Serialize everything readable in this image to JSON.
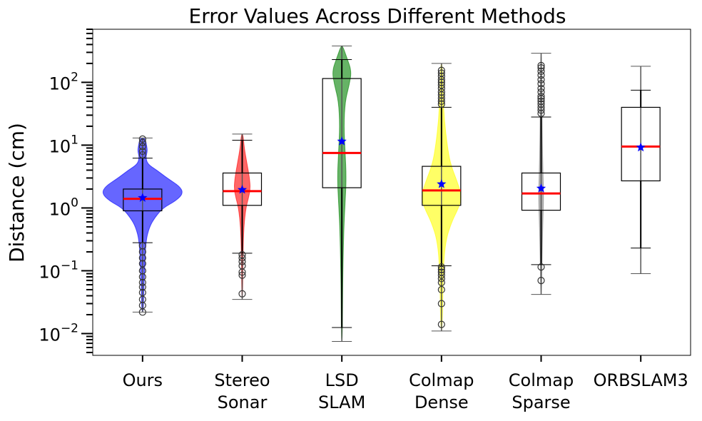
{
  "chart_data": {
    "type": "box+violin",
    "title": "Error Values Across Different Methods",
    "xlabel": "",
    "ylabel": "Distance (cm)",
    "yscale": "log",
    "ylim": [
      0.0045,
      700
    ],
    "y_ticks": [
      {
        "base": "10",
        "exp": "2",
        "value": 100
      },
      {
        "base": "10",
        "exp": "1",
        "value": 10
      },
      {
        "base": "10",
        "exp": "0",
        "value": 1
      },
      {
        "base": "10",
        "exp": "−1",
        "value": 0.1
      },
      {
        "base": "10",
        "exp": "−2",
        "value": 0.01
      }
    ],
    "mean_marker": "star",
    "median_color": "#ff0000",
    "mean_color": "#0000ff",
    "series": [
      {
        "name": "Ours",
        "label_lines": [
          "Ours"
        ],
        "violin_color": "#0000ff",
        "violin_max": 13,
        "violin_min": 0.022,
        "violin_profile": [
          [
            13,
            0.06
          ],
          [
            10,
            0.1
          ],
          [
            8,
            0.12
          ],
          [
            6.5,
            0.08
          ],
          [
            5,
            0.12
          ],
          [
            4,
            0.35
          ],
          [
            3,
            0.6
          ],
          [
            2.2,
            0.92
          ],
          [
            1.7,
            1.0
          ],
          [
            1.3,
            0.82
          ],
          [
            1,
            0.5
          ],
          [
            0.7,
            0.3
          ],
          [
            0.5,
            0.17
          ],
          [
            0.3,
            0.08
          ],
          [
            0.1,
            0.05
          ],
          [
            0.05,
            0.03
          ],
          [
            0.022,
            0.02
          ]
        ],
        "q1": 0.9,
        "median": 1.4,
        "q3": 2.0,
        "mean": 1.45,
        "whisker_low": 0.28,
        "whisker_high": 6.2,
        "outliers": [
          0.022,
          0.028,
          0.035,
          0.045,
          0.055,
          0.065,
          0.08,
          0.1,
          0.13,
          0.16,
          0.2,
          0.25,
          7,
          8,
          9.5,
          11,
          12.5
        ]
      },
      {
        "name": "Stereo Sonar",
        "label_lines": [
          "Stereo",
          "Sonar"
        ],
        "violin_color": "#ff0000",
        "violin_max": 15,
        "violin_min": 0.035,
        "violin_profile": [
          [
            15,
            0.02
          ],
          [
            9,
            0.05
          ],
          [
            5,
            0.12
          ],
          [
            3,
            0.18
          ],
          [
            2,
            0.2
          ],
          [
            1.4,
            0.15
          ],
          [
            1,
            0.09
          ],
          [
            0.5,
            0.04
          ],
          [
            0.2,
            0.02
          ],
          [
            0.035,
            0.01
          ]
        ],
        "q1": 1.1,
        "median": 1.85,
        "q3": 3.6,
        "mean": 1.95,
        "whisker_low": 0.19,
        "whisker_high": 12,
        "outliers": [
          0.043,
          0.085,
          0.095,
          0.12,
          0.14,
          0.16,
          0.18
        ]
      },
      {
        "name": "LSD SLAM",
        "label_lines": [
          "LSD",
          "SLAM"
        ],
        "violin_color": "#008000",
        "violin_max": 380,
        "violin_min": 0.0075,
        "violin_profile": [
          [
            380,
            0.02
          ],
          [
            250,
            0.12
          ],
          [
            150,
            0.24
          ],
          [
            90,
            0.18
          ],
          [
            50,
            0.08
          ],
          [
            20,
            0.05
          ],
          [
            8,
            0.08
          ],
          [
            3,
            0.11
          ],
          [
            1.2,
            0.08
          ],
          [
            0.5,
            0.05
          ],
          [
            0.1,
            0.025
          ],
          [
            0.02,
            0.015
          ],
          [
            0.0075,
            0.01
          ]
        ],
        "q1": 2.1,
        "median": 7.5,
        "q3": 115,
        "mean": 11.5,
        "whisker_low": 0.0125,
        "whisker_high": 230,
        "outliers": []
      },
      {
        "name": "Colmap Dense",
        "label_lines": [
          "Colmap",
          "Dense"
        ],
        "violin_color": "#ffff00",
        "violin_max": 200,
        "violin_min": 0.011,
        "violin_profile": [
          [
            200,
            0.02
          ],
          [
            60,
            0.04
          ],
          [
            25,
            0.07
          ],
          [
            10,
            0.14
          ],
          [
            5,
            0.22
          ],
          [
            2.5,
            0.4
          ],
          [
            1.5,
            0.5
          ],
          [
            1,
            0.42
          ],
          [
            0.6,
            0.25
          ],
          [
            0.3,
            0.1
          ],
          [
            0.1,
            0.04
          ],
          [
            0.011,
            0.02
          ]
        ],
        "q1": 1.1,
        "median": 1.9,
        "q3": 4.6,
        "mean": 2.4,
        "whisker_low": 0.12,
        "whisker_high": 40,
        "outliers": [
          0.014,
          0.03,
          0.05,
          0.065,
          0.075,
          0.085,
          0.095,
          0.105,
          0.115,
          45,
          50,
          56,
          63,
          70,
          80,
          90,
          100,
          110,
          125,
          140,
          155
        ]
      },
      {
        "name": "Colmap Sparse",
        "label_lines": [
          "Colmap",
          "Sparse"
        ],
        "violin_color": "#808080",
        "violin_max": 290,
        "violin_min": 0.042,
        "violin_profile": [
          [
            290,
            0.01
          ],
          [
            50,
            0.02
          ],
          [
            10,
            0.03
          ],
          [
            3,
            0.05
          ],
          [
            1.5,
            0.06
          ],
          [
            0.8,
            0.05
          ],
          [
            0.3,
            0.03
          ],
          [
            0.042,
            0.01
          ]
        ],
        "q1": 0.92,
        "median": 1.7,
        "q3": 3.6,
        "mean": 2.05,
        "whisker_low": 0.125,
        "whisker_high": 28,
        "outliers": [
          0.07,
          0.115,
          32,
          36,
          40,
          45,
          50,
          55,
          60,
          70,
          80,
          95,
          110,
          130,
          150,
          170,
          185
        ]
      },
      {
        "name": "ORBSLAM3",
        "label_lines": [
          "ORBSLAM3"
        ],
        "violin_color": "#808080",
        "violin_max": 180,
        "violin_min": 0.09,
        "violin_profile": [
          [
            180,
            0.005
          ],
          [
            0.09,
            0.005
          ]
        ],
        "q1": 2.7,
        "median": 9.5,
        "q3": 40,
        "mean": 9.2,
        "whisker_low": 0.23,
        "whisker_high": 75,
        "outliers": []
      }
    ]
  }
}
